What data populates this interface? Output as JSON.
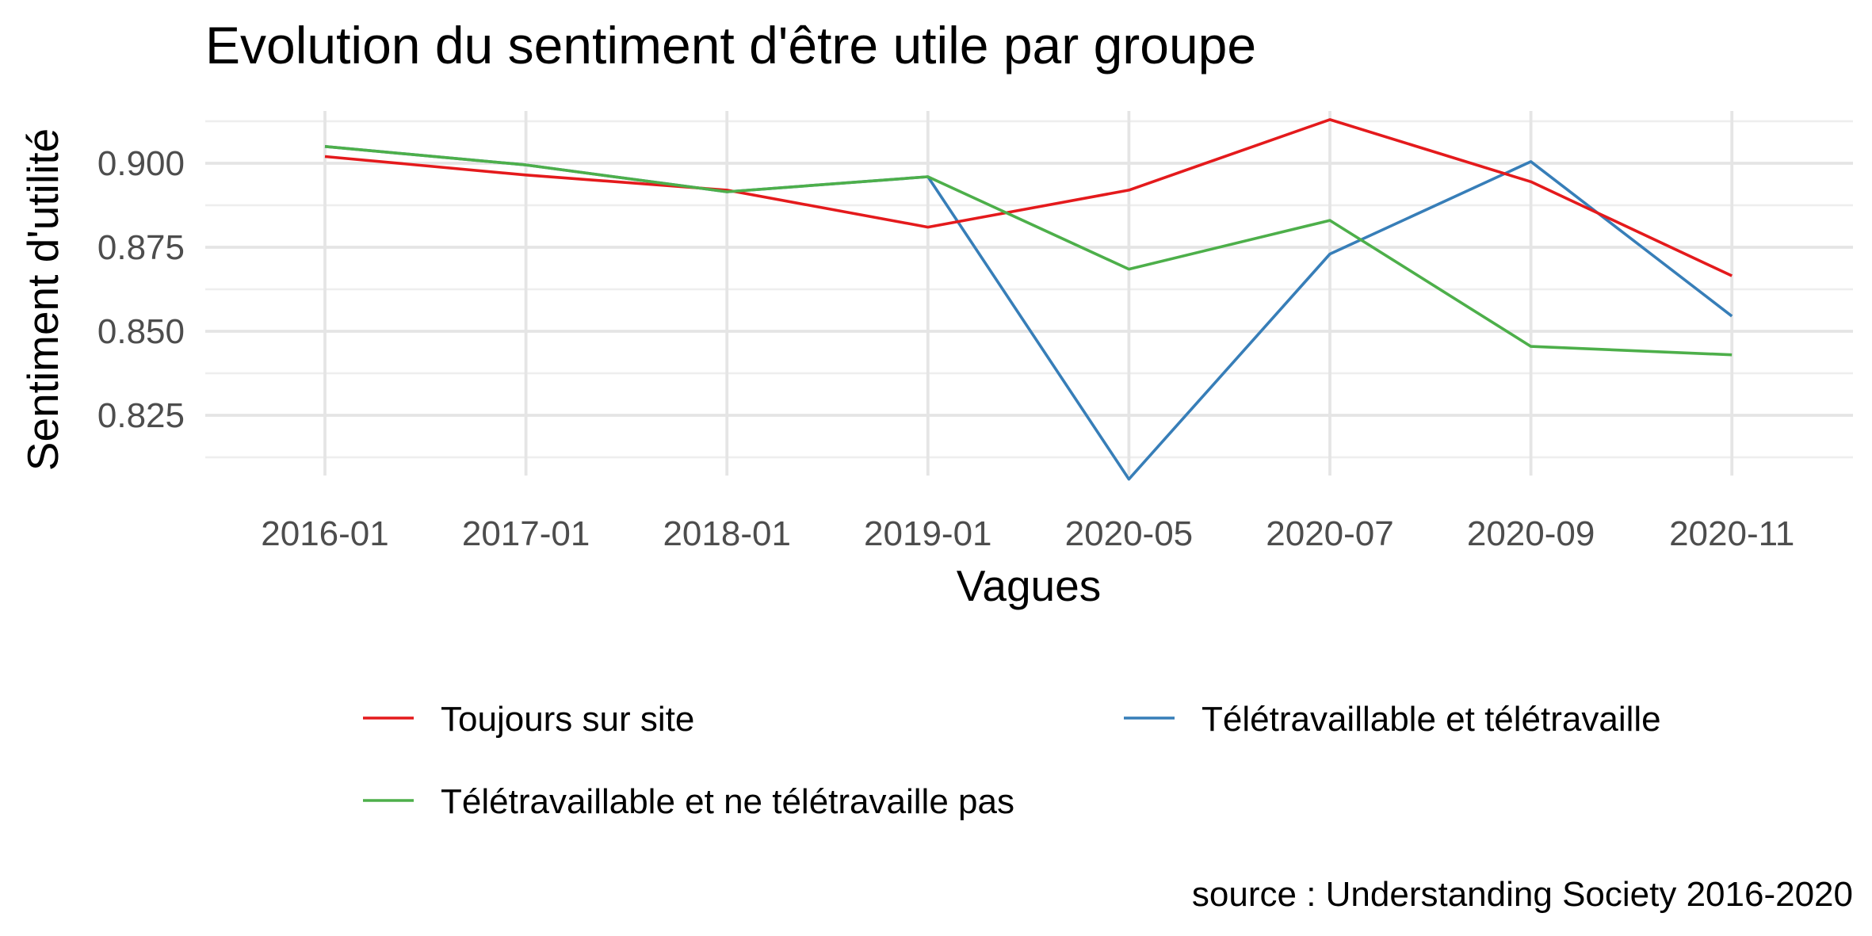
{
  "chart_data": {
    "type": "line",
    "title": "Evolution du sentiment d'être utile par groupe",
    "xlabel": "Vagues",
    "ylabel": "Sentiment d'utilité",
    "categories": [
      "2016-01",
      "2017-01",
      "2018-01",
      "2019-01",
      "2020-05",
      "2020-07",
      "2020-09",
      "2020-11"
    ],
    "y_ticks": [
      "0.825",
      "0.850",
      "0.875",
      "0.900"
    ],
    "ylim": [
      0.806,
      0.913
    ],
    "grid": true,
    "legend_position": "bottom",
    "caption": "source : Understanding Society 2016-2020",
    "series": [
      {
        "name": "Toujours sur site",
        "color": "#e41a1c",
        "values": [
          0.902,
          0.8965,
          0.892,
          0.881,
          0.892,
          0.913,
          0.8945,
          0.8665
        ]
      },
      {
        "name": "Télétravaillable et télétravaille",
        "color": "#377eb8",
        "values": [
          0.905,
          0.8995,
          0.8915,
          0.896,
          0.806,
          0.873,
          0.9005,
          0.8545
        ]
      },
      {
        "name": "Télétravaillable et ne télétravaille pas",
        "color": "#4daf4a",
        "values": [
          0.905,
          0.8995,
          0.8915,
          0.896,
          0.8685,
          0.883,
          0.8455,
          0.843
        ]
      }
    ],
    "legend_order": [
      0,
      1,
      2
    ]
  }
}
